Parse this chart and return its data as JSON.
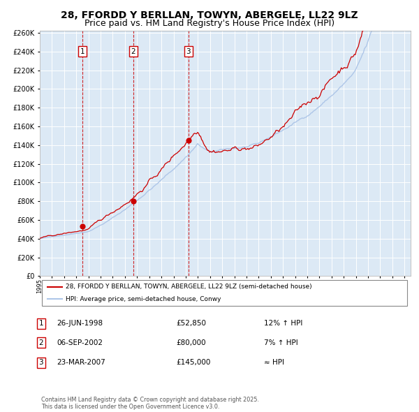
{
  "title": "28, FFORDD Y BERLLAN, TOWYN, ABERGELE, LL22 9LZ",
  "subtitle": "Price paid vs. HM Land Registry's House Price Index (HPI)",
  "hpi_legend": "HPI: Average price, semi-detached house, Conwy",
  "price_legend": "28, FFORDD Y BERLLAN, TOWYN, ABERGELE, LL22 9LZ (semi-detached house)",
  "hpi_color": "#aec6e8",
  "price_color": "#cc0000",
  "sale_color": "#cc0000",
  "vline_color": "#cc0000",
  "bg_color": "#dce9f5",
  "grid_color": "#ffffff",
  "sales": [
    {
      "date_num": 1998.49,
      "price": 52850,
      "label": "1"
    },
    {
      "date_num": 2002.68,
      "price": 80000,
      "label": "2"
    },
    {
      "date_num": 2007.23,
      "price": 145000,
      "label": "3"
    }
  ],
  "sale_annotations": [
    {
      "label": "1",
      "date": "26-JUN-1998",
      "price": "£52,850",
      "hpi": "12% ↑ HPI"
    },
    {
      "label": "2",
      "date": "06-SEP-2002",
      "price": "£80,000",
      "hpi": "7% ↑ HPI"
    },
    {
      "label": "3",
      "date": "23-MAR-2007",
      "price": "£145,000",
      "hpi": "≈ HPI"
    }
  ],
  "xmin": 1995.0,
  "xmax": 2025.5,
  "ymin": 0,
  "ymax": 262000,
  "yticks": [
    0,
    20000,
    40000,
    60000,
    80000,
    100000,
    120000,
    140000,
    160000,
    180000,
    200000,
    220000,
    240000,
    260000
  ],
  "footnote": "Contains HM Land Registry data © Crown copyright and database right 2025.\nThis data is licensed under the Open Government Licence v3.0.",
  "title_fontsize": 10,
  "subtitle_fontsize": 9
}
